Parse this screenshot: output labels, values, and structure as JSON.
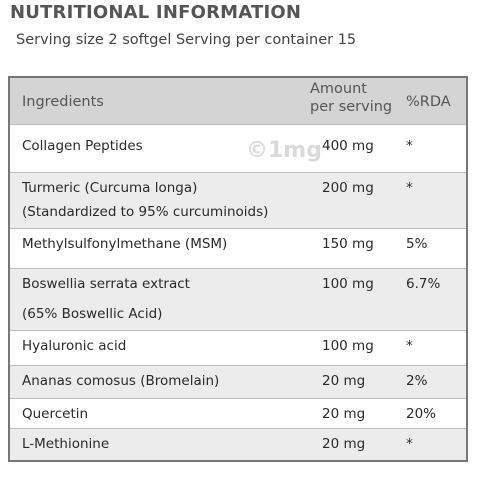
{
  "header": {
    "title": "NUTRITIONAL INFORMATION",
    "subtitle": "Serving size 2 softgel Serving per container 15"
  },
  "watermark": "©1mg",
  "table": {
    "columns": [
      [
        "Ingredients"
      ],
      [
        "Amount",
        "per serving"
      ],
      [
        "%RDA"
      ]
    ],
    "rows": [
      {
        "ingredient": [
          "Collagen Peptides"
        ],
        "amount": "400 mg",
        "rda": "*"
      },
      {
        "ingredient": [
          "Turmeric (Curcuma longa)",
          "(Standardized to 95% curcuminoids)"
        ],
        "amount": "200 mg",
        "rda": "*"
      },
      {
        "ingredient": [
          "Methylsulfonylmethane (MSM)"
        ],
        "amount": "150 mg",
        "rda": "5%"
      },
      {
        "ingredient": [
          "Boswellia serrata extract",
          "(65% Boswellic Acid)"
        ],
        "amount": "100 mg",
        "rda": "6.7%"
      },
      {
        "ingredient": [
          "Hyaluronic acid"
        ],
        "amount": "100 mg",
        "rda": "*"
      },
      {
        "ingredient": [
          "Ananas comosus (Bromelain)"
        ],
        "amount": "20 mg",
        "rda": "2%"
      },
      {
        "ingredient": [
          "Quercetin"
        ],
        "amount": "20 mg",
        "rda": "20%"
      },
      {
        "ingredient": [
          "L-Methionine"
        ],
        "amount": "20 mg",
        "rda": "*"
      }
    ]
  }
}
